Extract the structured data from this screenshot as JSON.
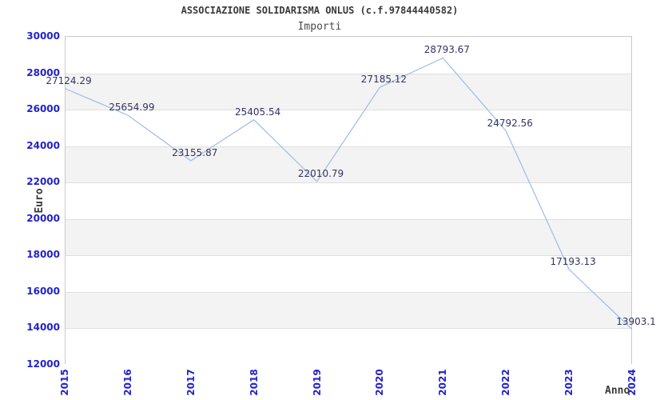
{
  "header": {
    "title": "ASSOCIAZIONE SOLIDARISMA ONLUS (c.f.97844440582)",
    "subtitle": "Importi"
  },
  "chart_data": {
    "type": "line",
    "title": "ASSOCIAZIONE SOLIDARISMA ONLUS (c.f.97844440582)",
    "subtitle": "Importi",
    "xlabel": "Anno",
    "ylabel": "Euro",
    "x": [
      "2015",
      "2016",
      "2017",
      "2018",
      "2019",
      "2020",
      "2021",
      "2022",
      "2023",
      "2024"
    ],
    "values": [
      27124.29,
      25654.99,
      23155.87,
      25405.54,
      22010.79,
      27185.12,
      28793.67,
      24792.56,
      17193.13,
      13903.1
    ],
    "point_labels": [
      "27124.29",
      "25654.99",
      "23155.87",
      "25405.54",
      "22010.79",
      "27185.12",
      "28793.67",
      "24792.56",
      "17193.13",
      "13903.1"
    ],
    "ylim": [
      12000,
      30000
    ],
    "y_ticks": [
      30000,
      28000,
      26000,
      24000,
      22000,
      20000,
      18000,
      16000,
      14000,
      12000
    ],
    "grid": "alternating-horizontal-bands",
    "legend_position": "none"
  },
  "colors": {
    "tick_label": "#2222cc",
    "line": "#9bbce8",
    "point_label": "#333366",
    "band": "#f3f3f3",
    "gridline": "#e0e0e0",
    "plot_border": "#c8c8c8",
    "title_text": "#3a3a3a",
    "subtitle_text": "#4a4a4a"
  }
}
